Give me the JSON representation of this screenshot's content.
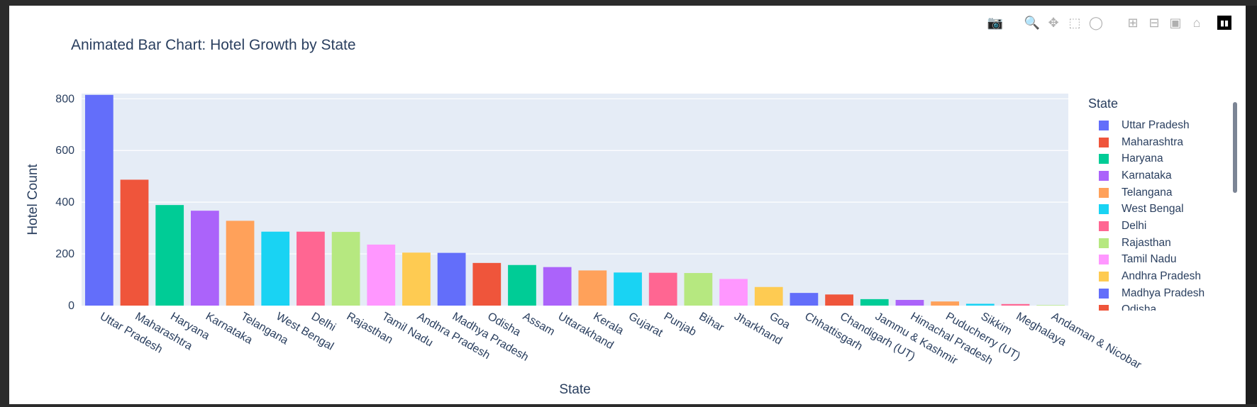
{
  "modebar": {
    "icons": [
      "camera-icon",
      "zoom-icon",
      "pan-icon",
      "box-select-icon",
      "lasso-icon",
      "zoom-in-icon",
      "zoom-out-icon",
      "autoscale-icon",
      "reset-axes-icon",
      "plotly-logo"
    ]
  },
  "chart_data": {
    "type": "bar",
    "title": "Animated Bar Chart: Hotel Growth by State",
    "xlabel": "State",
    "ylabel": "Hotel Count",
    "ylim": [
      0,
      820
    ],
    "yticks": [
      0,
      200,
      400,
      600,
      800
    ],
    "grid": true,
    "legend": {
      "title": "State",
      "placement": "right"
    },
    "categories": [
      "Uttar Pradesh",
      "Maharashtra",
      "Haryana",
      "Karnataka",
      "Telangana",
      "West Bengal",
      "Delhi",
      "Rajasthan",
      "Tamil Nadu",
      "Andhra Pradesh",
      "Madhya Pradesh",
      "Odisha",
      "Assam",
      "Uttarakhand",
      "Kerala",
      "Gujarat",
      "Punjab",
      "Bihar",
      "Jharkhand",
      "Goa",
      "Chhattisgarh",
      "Chandigarh (UT)",
      "Jammu & Kashmir",
      "Himachal Pradesh",
      "Puducherry (UT)",
      "Sikkim",
      "Meghalaya",
      "Andaman & Nicobar"
    ],
    "values": [
      815,
      487,
      389,
      367,
      328,
      286,
      286,
      285,
      236,
      205,
      204,
      165,
      157,
      149,
      136,
      128,
      127,
      126,
      103,
      72,
      49,
      43,
      25,
      22,
      16,
      7,
      6,
      2
    ],
    "colors": [
      "#636efa",
      "#EF553B",
      "#00cc96",
      "#ab63fa",
      "#FFA15A",
      "#19d3f3",
      "#FF6692",
      "#B6E880",
      "#FF97FF",
      "#FECB52"
    ],
    "legend_visible": [
      "Uttar Pradesh",
      "Maharashtra",
      "Haryana",
      "Karnataka",
      "Telangana",
      "West Bengal",
      "Delhi",
      "Rajasthan",
      "Tamil Nadu",
      "Andhra Pradesh",
      "Madhya Pradesh",
      "Odisha"
    ]
  }
}
